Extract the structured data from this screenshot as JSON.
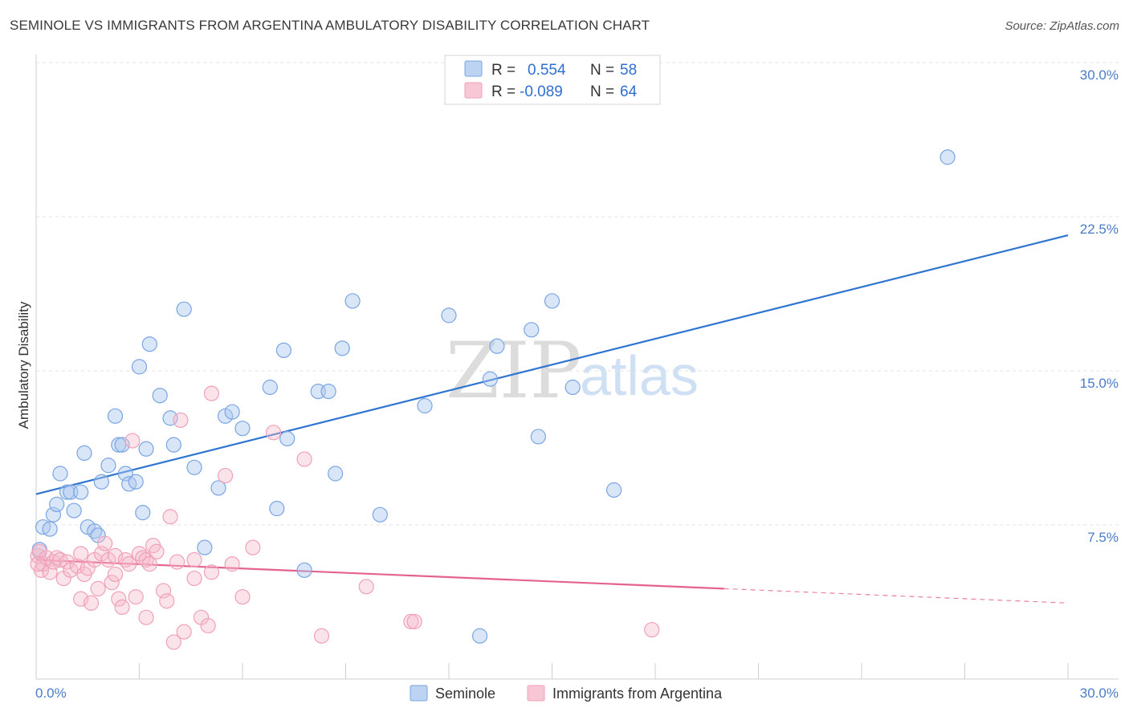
{
  "title": "SEMINOLE VS IMMIGRANTS FROM ARGENTINA AMBULATORY DISABILITY CORRELATION CHART",
  "source": "Source: ZipAtlas.com",
  "watermark": {
    "zip": "ZIP",
    "atlas": "atlas"
  },
  "legend": {
    "rows": [
      {
        "r_label": "R =",
        "r_value": "0.554",
        "n_label": "N =",
        "n_value": "58",
        "color": "#a9c6ee"
      },
      {
        "r_label": "R =",
        "r_value": "-0.089",
        "n_label": "N =",
        "n_value": "64",
        "color": "#f5b8cb"
      }
    ]
  },
  "bottom_legend": [
    "Seminole",
    "Immigrants from Argentina"
  ],
  "chart_data": {
    "type": "scatter",
    "title": "SEMINOLE VS IMMIGRANTS FROM ARGENTINA AMBULATORY DISABILITY CORRELATION CHART",
    "xlabel": "",
    "ylabel": "Ambulatory Disability",
    "xlim": [
      0,
      30
    ],
    "ylim": [
      0,
      30
    ],
    "x_tick_labels": [
      "0.0%",
      "30.0%"
    ],
    "y_ticks": [
      7.5,
      15.0,
      22.5,
      30.0
    ],
    "y_tick_labels": [
      "7.5%",
      "15.0%",
      "22.5%",
      "30.0%"
    ],
    "grid": true,
    "legend_position": "top-center",
    "series": [
      {
        "name": "Seminole",
        "color": "#7aa5e3",
        "line_color": "#2e74d0",
        "trend": {
          "x": [
            0,
            30
          ],
          "y": [
            9.0,
            21.6
          ],
          "dashed_from": null
        },
        "points": [
          [
            0.1,
            6.3
          ],
          [
            0.2,
            7.4
          ],
          [
            0.4,
            7.3
          ],
          [
            0.5,
            8.0
          ],
          [
            0.6,
            8.5
          ],
          [
            0.7,
            10.0
          ],
          [
            0.9,
            9.1
          ],
          [
            1.0,
            9.1
          ],
          [
            1.1,
            8.2
          ],
          [
            1.3,
            9.1
          ],
          [
            1.4,
            11.0
          ],
          [
            1.5,
            7.4
          ],
          [
            1.7,
            7.2
          ],
          [
            1.8,
            7.0
          ],
          [
            1.9,
            9.6
          ],
          [
            2.1,
            10.4
          ],
          [
            2.3,
            12.8
          ],
          [
            2.4,
            11.4
          ],
          [
            2.5,
            11.4
          ],
          [
            2.6,
            10.0
          ],
          [
            2.7,
            9.5
          ],
          [
            2.9,
            9.6
          ],
          [
            3.1,
            8.1
          ],
          [
            3.2,
            11.2
          ],
          [
            3.0,
            15.2
          ],
          [
            3.3,
            16.3
          ],
          [
            3.6,
            13.8
          ],
          [
            3.9,
            12.7
          ],
          [
            4.0,
            11.4
          ],
          [
            4.3,
            18.0
          ],
          [
            4.6,
            10.3
          ],
          [
            4.9,
            6.4
          ],
          [
            5.3,
            9.3
          ],
          [
            5.5,
            12.8
          ],
          [
            5.7,
            13.0
          ],
          [
            6.0,
            12.2
          ],
          [
            6.8,
            14.2
          ],
          [
            7.0,
            8.3
          ],
          [
            7.2,
            16.0
          ],
          [
            7.3,
            11.7
          ],
          [
            7.8,
            5.3
          ],
          [
            8.2,
            14.0
          ],
          [
            8.5,
            14.0
          ],
          [
            8.7,
            10.0
          ],
          [
            8.9,
            16.1
          ],
          [
            9.2,
            18.4
          ],
          [
            10.0,
            8.0
          ],
          [
            11.3,
            13.3
          ],
          [
            12.0,
            17.7
          ],
          [
            12.9,
            2.1
          ],
          [
            13.2,
            14.6
          ],
          [
            13.4,
            16.2
          ],
          [
            14.4,
            17.0
          ],
          [
            14.6,
            11.8
          ],
          [
            15.0,
            18.4
          ],
          [
            15.6,
            14.2
          ],
          [
            16.8,
            9.2
          ],
          [
            26.5,
            25.4
          ]
        ]
      },
      {
        "name": "Immigrants from Argentina",
        "color": "#f0a0b8",
        "line_color": "#e4628c",
        "trend": {
          "x": [
            0,
            20,
            30
          ],
          "y": [
            5.8,
            4.4,
            3.7
          ],
          "dashed_from": 20
        },
        "points": [
          [
            0.05,
            6.0
          ],
          [
            0.1,
            6.2
          ],
          [
            0.15,
            5.3
          ],
          [
            0.2,
            5.6
          ],
          [
            0.3,
            5.9
          ],
          [
            0.4,
            5.2
          ],
          [
            0.5,
            5.7
          ],
          [
            0.6,
            5.9
          ],
          [
            0.7,
            5.8
          ],
          [
            0.8,
            4.9
          ],
          [
            0.9,
            5.7
          ],
          [
            1.0,
            5.3
          ],
          [
            1.2,
            5.5
          ],
          [
            1.3,
            6.1
          ],
          [
            1.3,
            3.9
          ],
          [
            1.4,
            5.1
          ],
          [
            1.5,
            5.4
          ],
          [
            1.6,
            3.7
          ],
          [
            1.7,
            5.8
          ],
          [
            1.8,
            4.4
          ],
          [
            1.9,
            6.1
          ],
          [
            2.0,
            6.6
          ],
          [
            2.1,
            5.8
          ],
          [
            2.2,
            4.7
          ],
          [
            2.3,
            6.0
          ],
          [
            2.3,
            5.1
          ],
          [
            2.4,
            3.9
          ],
          [
            2.5,
            3.5
          ],
          [
            2.6,
            5.8
          ],
          [
            2.7,
            5.6
          ],
          [
            2.8,
            11.6
          ],
          [
            2.9,
            4.0
          ],
          [
            3.0,
            6.1
          ],
          [
            3.1,
            5.9
          ],
          [
            3.2,
            5.8
          ],
          [
            3.2,
            3.0
          ],
          [
            3.3,
            5.6
          ],
          [
            3.4,
            6.5
          ],
          [
            3.5,
            6.2
          ],
          [
            3.7,
            4.3
          ],
          [
            3.8,
            3.8
          ],
          [
            3.9,
            7.9
          ],
          [
            4.0,
            1.8
          ],
          [
            4.1,
            5.7
          ],
          [
            4.2,
            12.6
          ],
          [
            4.3,
            2.3
          ],
          [
            4.6,
            4.9
          ],
          [
            4.6,
            5.8
          ],
          [
            4.8,
            3.0
          ],
          [
            5.0,
            2.6
          ],
          [
            5.1,
            5.2
          ],
          [
            5.1,
            13.9
          ],
          [
            5.5,
            9.9
          ],
          [
            5.7,
            5.6
          ],
          [
            6.0,
            4.0
          ],
          [
            6.3,
            6.4
          ],
          [
            6.9,
            12.0
          ],
          [
            7.8,
            10.7
          ],
          [
            8.3,
            2.1
          ],
          [
            9.6,
            4.5
          ],
          [
            10.9,
            2.8
          ],
          [
            11.0,
            2.8
          ],
          [
            17.9,
            2.4
          ],
          [
            0.05,
            5.6
          ]
        ]
      }
    ]
  }
}
